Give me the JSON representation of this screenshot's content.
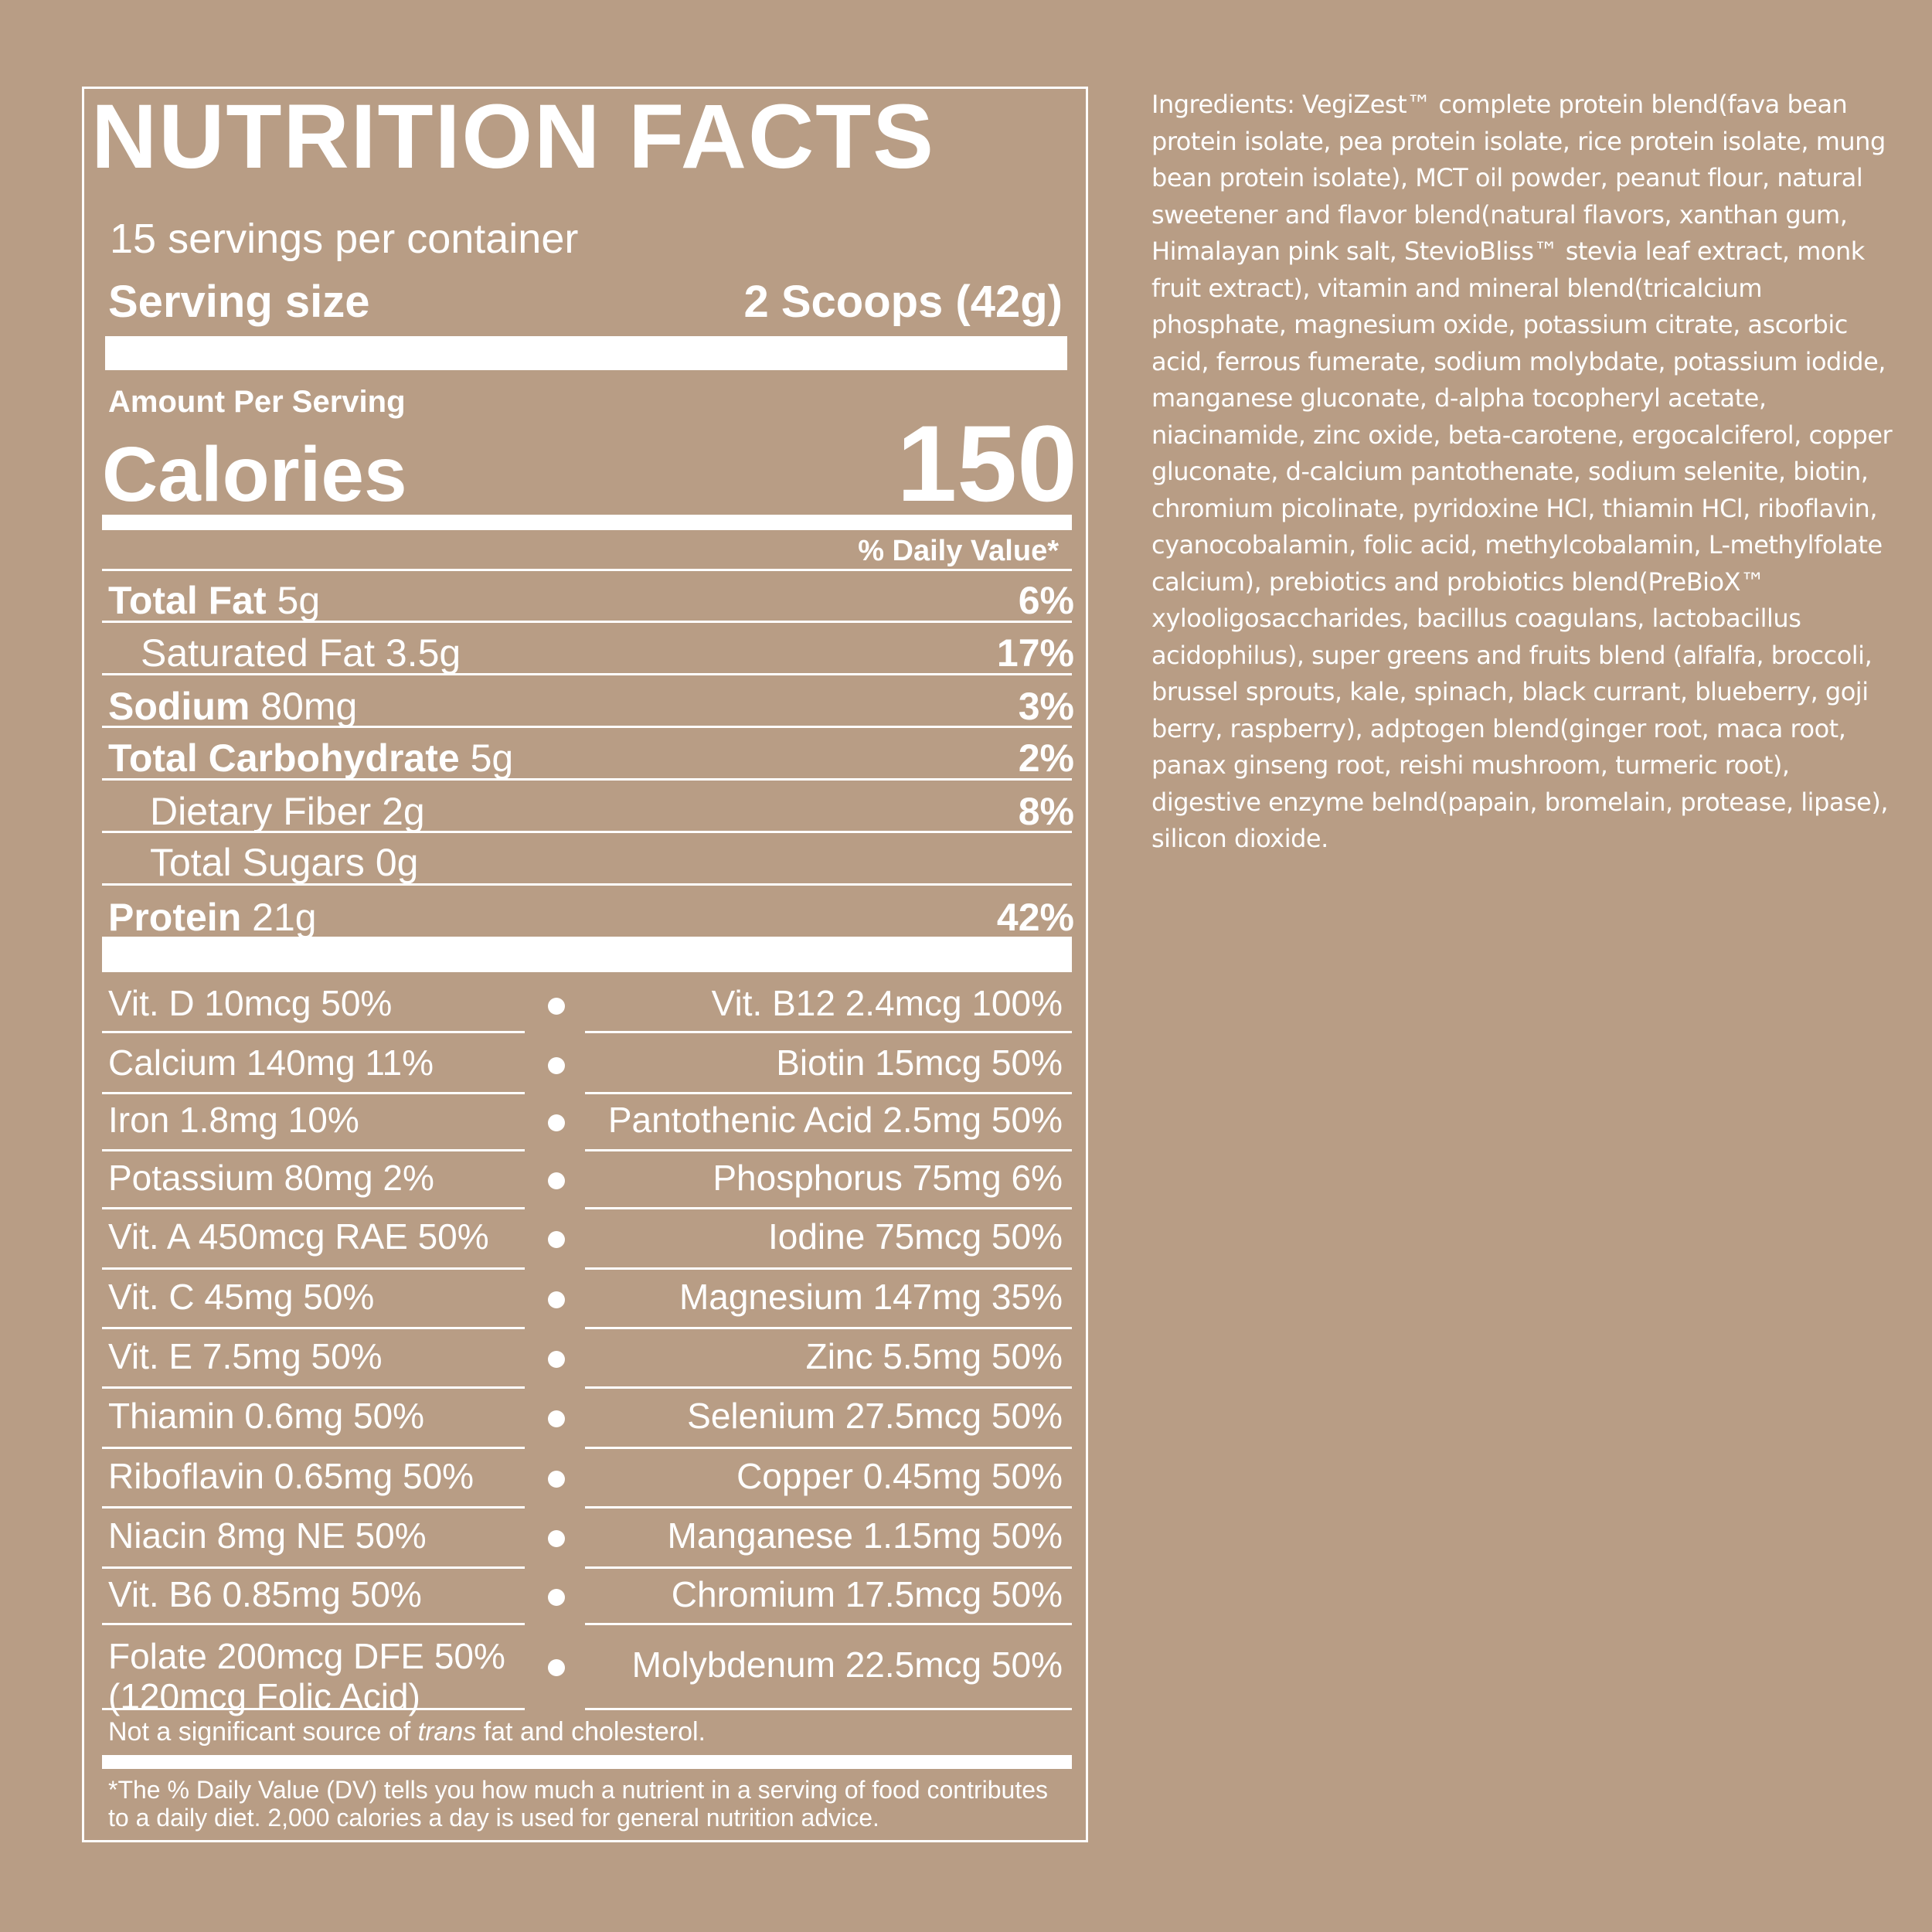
{
  "title": "NUTRITION FACTS",
  "servings_per_container": "15 servings per container",
  "serving_size": {
    "label": "Serving size",
    "value": "2 Scoops (42g)"
  },
  "amount_per_serving": "Amount Per Serving",
  "calories": {
    "label": "Calories",
    "value": "150"
  },
  "daily_value_header": "% Daily Value*",
  "nutrients": [
    {
      "name": "Total Fat",
      "amount": "5g",
      "dv": "6%"
    },
    {
      "name": "Saturated Fat",
      "amount": "3.5g",
      "dv": "17%"
    },
    {
      "name": "Sodium",
      "amount": "80mg",
      "dv": "3%"
    },
    {
      "name": "Total Carbohydrate",
      "amount": "5g",
      "dv": "2%"
    },
    {
      "name": "Dietary Fiber",
      "amount": "2g",
      "dv": "8%"
    },
    {
      "name": "Total Sugars",
      "amount": "0g",
      "dv": ""
    },
    {
      "name": "Protein",
      "amount": "21g",
      "dv": "42%"
    }
  ],
  "vitamins": [
    {
      "left": "Vit. D 10mcg 50%",
      "right": "Vit. B12 2.4mcg 100%"
    },
    {
      "left": "Calcium 140mg 11%",
      "right": "Biotin 15mcg 50%"
    },
    {
      "left": "Iron 1.8mg 10%",
      "right": "Pantothenic Acid 2.5mg 50%"
    },
    {
      "left": "Potassium 80mg 2%",
      "right": "Phosphorus 75mg 6%"
    },
    {
      "left": "Vit. A 450mcg RAE 50%",
      "right": "Iodine 75mcg 50%"
    },
    {
      "left": "Vit. C 45mg 50%",
      "right": "Magnesium 147mg 35%"
    },
    {
      "left": "Vit. E 7.5mg 50%",
      "right": "Zinc 5.5mg 50%"
    },
    {
      "left": "Thiamin 0.6mg 50%",
      "right": "Selenium 27.5mcg 50%"
    },
    {
      "left": "Riboflavin 0.65mg 50%",
      "right": "Copper 0.45mg 50%"
    },
    {
      "left": "Niacin 8mg NE 50%",
      "right": "Manganese 1.15mg 50%"
    },
    {
      "left": "Vit. B6 0.85mg 50%",
      "right": "Chromium 17.5mcg 50%"
    },
    {
      "left": "Folate 200mcg DFE 50%",
      "left_line2": "(120mcg Folic Acid)",
      "right": "Molybdenum 22.5mcg 50%"
    }
  ],
  "footnote_trans": {
    "before": "Not a significant source of ",
    "italic": "trans",
    "after": " fat and cholesterol."
  },
  "footnote_dv": "*The % Daily Value (DV) tells you how much a nutrient in a serving of food contributes to a daily diet. 2,000 calories a day is used for general nutrition advice.",
  "ingredients_lines": [
    "Ingredients: VegiZest™ complete protein blend(fava bean",
    "protein isolate, pea protein isolate, rice protein isolate, mung",
    "bean protein isolate), MCT oil powder, peanut flour, natural",
    "sweetener and flavor blend(natural flavors, xanthan gum,",
    "Himalayan pink salt, StevioBliss™ stevia leaf extract, monk",
    "fruit extract), vitamin and mineral blend(tricalcium",
    "phosphate, magnesium oxide, potassium citrate, ascorbic",
    "acid, ferrous fumerate, sodium molybdate, potassium iodide,",
    "manganese gluconate, d-alpha tocopheryl acetate,",
    "niacinamide, zinc oxide, beta-carotene, ergocalciferol, copper",
    "gluconate, d-calcium pantothenate, sodium selenite, biotin,",
    "chromium picolinate, pyridoxine HCl, thiamin HCl, riboflavin,",
    "cyanocobalamin, folic acid, methylcobalamin, L-methylfolate",
    "calcium), prebiotics and probiotics blend(PreBioX™",
    "xylooligosaccharides, bacillus coagulans, lactobacillus",
    "acidophilus), super greens and fruits blend (alfalfa, broccoli,",
    "brussel sprouts, kale, spinach, black currant, blueberry, goji",
    "berry, raspberry), adptogen blend(ginger root, maca root,",
    "panax ginseng root, reishi mushroom, turmeric root),",
    "digestive enzyme belnd(papain, bromelain, protease, lipase),",
    "silicon dioxide."
  ]
}
